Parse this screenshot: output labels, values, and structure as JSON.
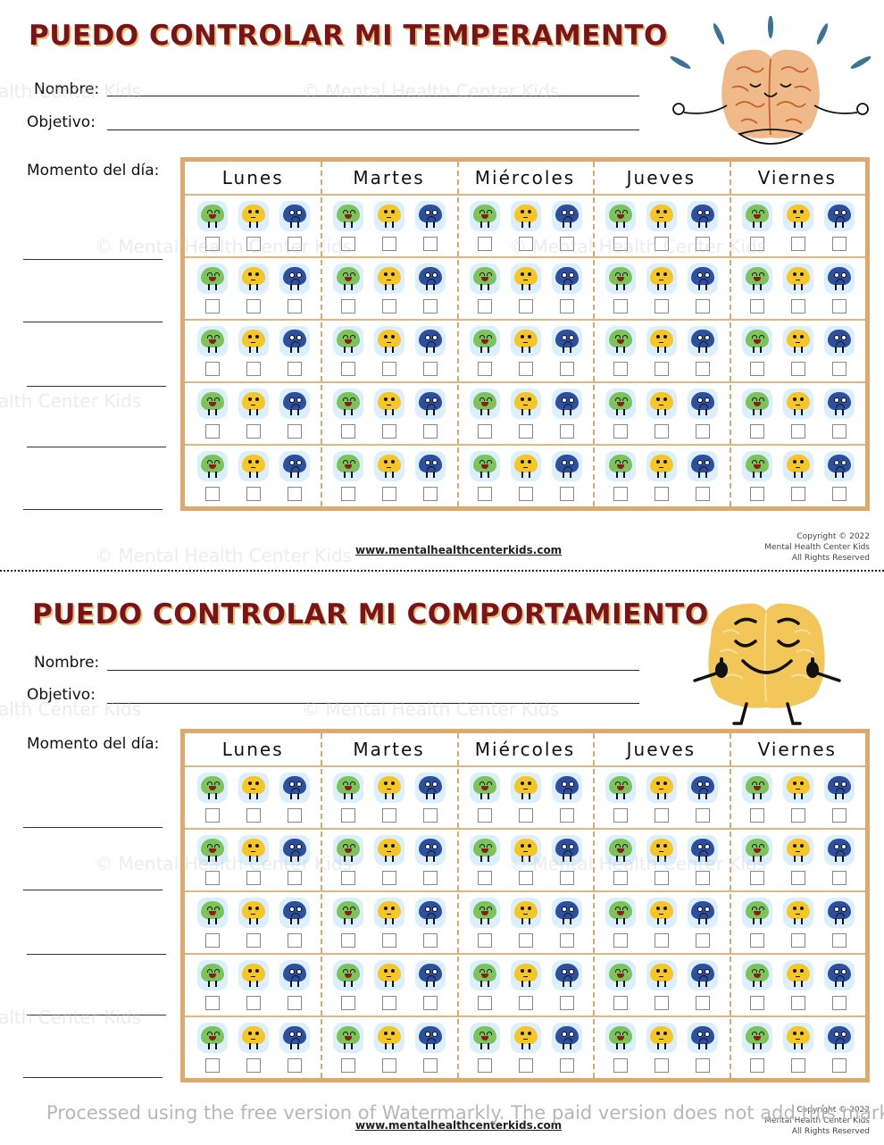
{
  "colors": {
    "title": "#7a1418",
    "title_shadow": "#e8c07a",
    "grid_border": "#dfa86c",
    "face_bg": "#dcefff",
    "happy": "#7cc35a",
    "neutral": "#f5c624",
    "sad": "#2d4fa0"
  },
  "sections": [
    {
      "title": "PUEDO CONTROLAR MI TEMPERAMENTO",
      "name_label": "Nombre:",
      "goal_label": "Objetivo:",
      "time_label": "Momento del día:",
      "illustration": "meditating-brain",
      "days": [
        "Lunes",
        "Martes",
        "Miércoles",
        "Jueves",
        "Viernes"
      ],
      "rows": 5,
      "faces": [
        "happy",
        "neutral",
        "sad"
      ],
      "footer": {
        "link": "www.mentalhealthcenterkids.com",
        "copyright": [
          "Copyright © 2022",
          "Mental Health Center Kids",
          "All Rights Reserved"
        ]
      }
    },
    {
      "title": "PUEDO CONTROLAR MI COMPORTAMIENTO",
      "name_label": "Nombre:",
      "goal_label": "Objetivo:",
      "time_label": "Momento del día:",
      "illustration": "thumbs-up-brain",
      "days": [
        "Lunes",
        "Martes",
        "Miércoles",
        "Jueves",
        "Viernes"
      ],
      "rows": 5,
      "faces": [
        "happy",
        "neutral",
        "sad"
      ],
      "footer": {
        "link": "www.mentalhealthcenterkids.com",
        "copyright": [
          "Copyright © 2022",
          "Mental Health Center Kids",
          "All Rights Reserved"
        ]
      }
    }
  ],
  "watermarks": {
    "site": "© Mental Health Center Kids",
    "processor": "Processed using the free version of Watermarkly. The paid version does not add this mark."
  }
}
